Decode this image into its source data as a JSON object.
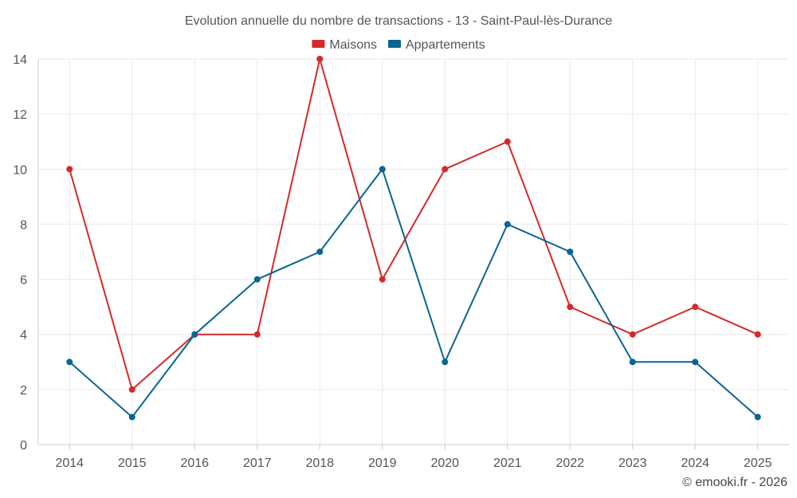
{
  "chart_data": {
    "type": "line",
    "title": "Evolution annuelle du nombre de transactions - 13 - Saint-Paul-lès-Durance",
    "categories": [
      "2014",
      "2015",
      "2016",
      "2017",
      "2018",
      "2019",
      "2020",
      "2021",
      "2022",
      "2023",
      "2024",
      "2025"
    ],
    "series": [
      {
        "name": "Maisons",
        "color": "#d42a2a",
        "values": [
          10,
          2,
          4,
          4,
          14,
          6,
          10,
          11,
          5,
          4,
          5,
          4
        ]
      },
      {
        "name": "Appartements",
        "color": "#0a6496",
        "values": [
          3,
          1,
          4,
          6,
          7,
          10,
          3,
          8,
          7,
          3,
          3,
          1
        ]
      }
    ],
    "xlabel": "",
    "ylabel": "",
    "ylim": [
      0,
      14
    ],
    "yticks": [
      0,
      2,
      4,
      6,
      8,
      10,
      12,
      14
    ],
    "grid": true,
    "legend": "top-center"
  },
  "credit": "© emooki.fr - 2026"
}
